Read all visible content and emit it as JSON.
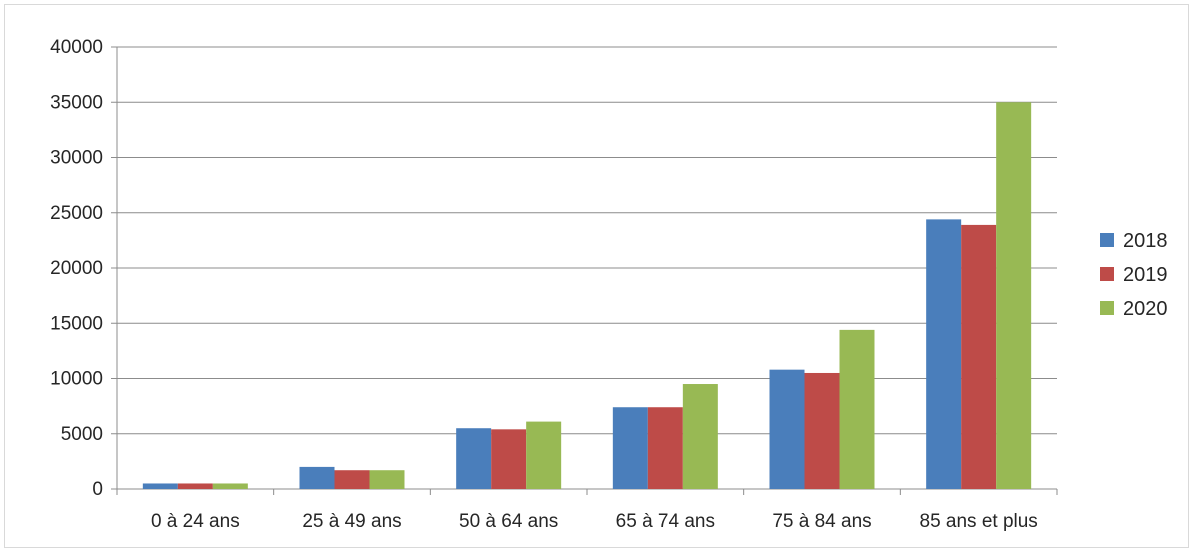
{
  "chart_data": {
    "type": "bar",
    "title": "",
    "xlabel": "",
    "ylabel": "",
    "categories": [
      "0 à 24 ans",
      "25 à 49 ans",
      "50 à 64 ans",
      "65 à 74 ans",
      "75 à 84 ans",
      "85 ans et plus"
    ],
    "series": [
      {
        "name": "2018",
        "color": "#4a7ebb",
        "values": [
          500,
          2000,
          5500,
          7400,
          10800,
          24400
        ]
      },
      {
        "name": "2019",
        "color": "#be4b48",
        "values": [
          500,
          1700,
          5400,
          7400,
          10500,
          23900
        ]
      },
      {
        "name": "2020",
        "color": "#98b954",
        "values": [
          500,
          1700,
          6100,
          9500,
          14400,
          35000
        ]
      }
    ],
    "ylim": [
      0,
      40000
    ],
    "yticks": [
      0,
      5000,
      10000,
      15000,
      20000,
      25000,
      30000,
      35000,
      40000
    ],
    "grid": true,
    "legend": "right"
  }
}
